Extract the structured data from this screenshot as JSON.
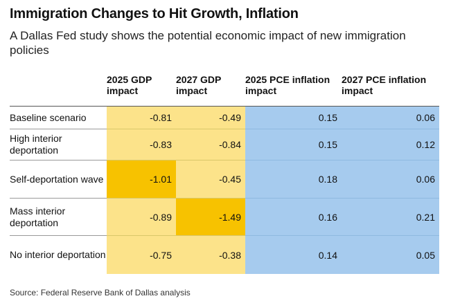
{
  "chart_data": {
    "type": "table",
    "title": "Immigration Changes to Hit Growth, Inflation",
    "subtitle": "A Dallas Fed study shows the potential economic impact of new immigration policies",
    "columns": [
      "",
      "2025 GDP impact",
      "2027 GDP impact",
      "2025 PCE inflation impact",
      "2027 PCE inflation impact"
    ],
    "rows": [
      {
        "label": "Baseline scenario",
        "values": [
          "-0.81",
          "-0.49",
          "0.15",
          "0.06"
        ]
      },
      {
        "label": "High interior deportation",
        "values": [
          "-0.83",
          "-0.84",
          "0.15",
          "0.12"
        ]
      },
      {
        "label": "Self-deportation wave",
        "values": [
          "-1.01",
          "-0.45",
          "0.18",
          "0.06"
        ]
      },
      {
        "label": "Mass interior deportation",
        "values": [
          "-0.89",
          "-1.49",
          "0.16",
          "0.21"
        ]
      },
      {
        "label": "No interior deportation",
        "values": [
          "-0.75",
          "-0.38",
          "0.14",
          "0.05"
        ]
      }
    ],
    "highlights": [
      {
        "row": 2,
        "col": 0,
        "note": "lowest 2025 GDP impact"
      },
      {
        "row": 3,
        "col": 1,
        "note": "lowest 2027 GDP impact"
      }
    ],
    "source": "Source: Federal Reserve Bank of Dallas analysis"
  },
  "colors": {
    "gdp_fill": "#fce38a",
    "gdp_highlight": "#f7c200",
    "pce_fill": "#a6cbee",
    "pce_highlight": "#a6cbee"
  }
}
